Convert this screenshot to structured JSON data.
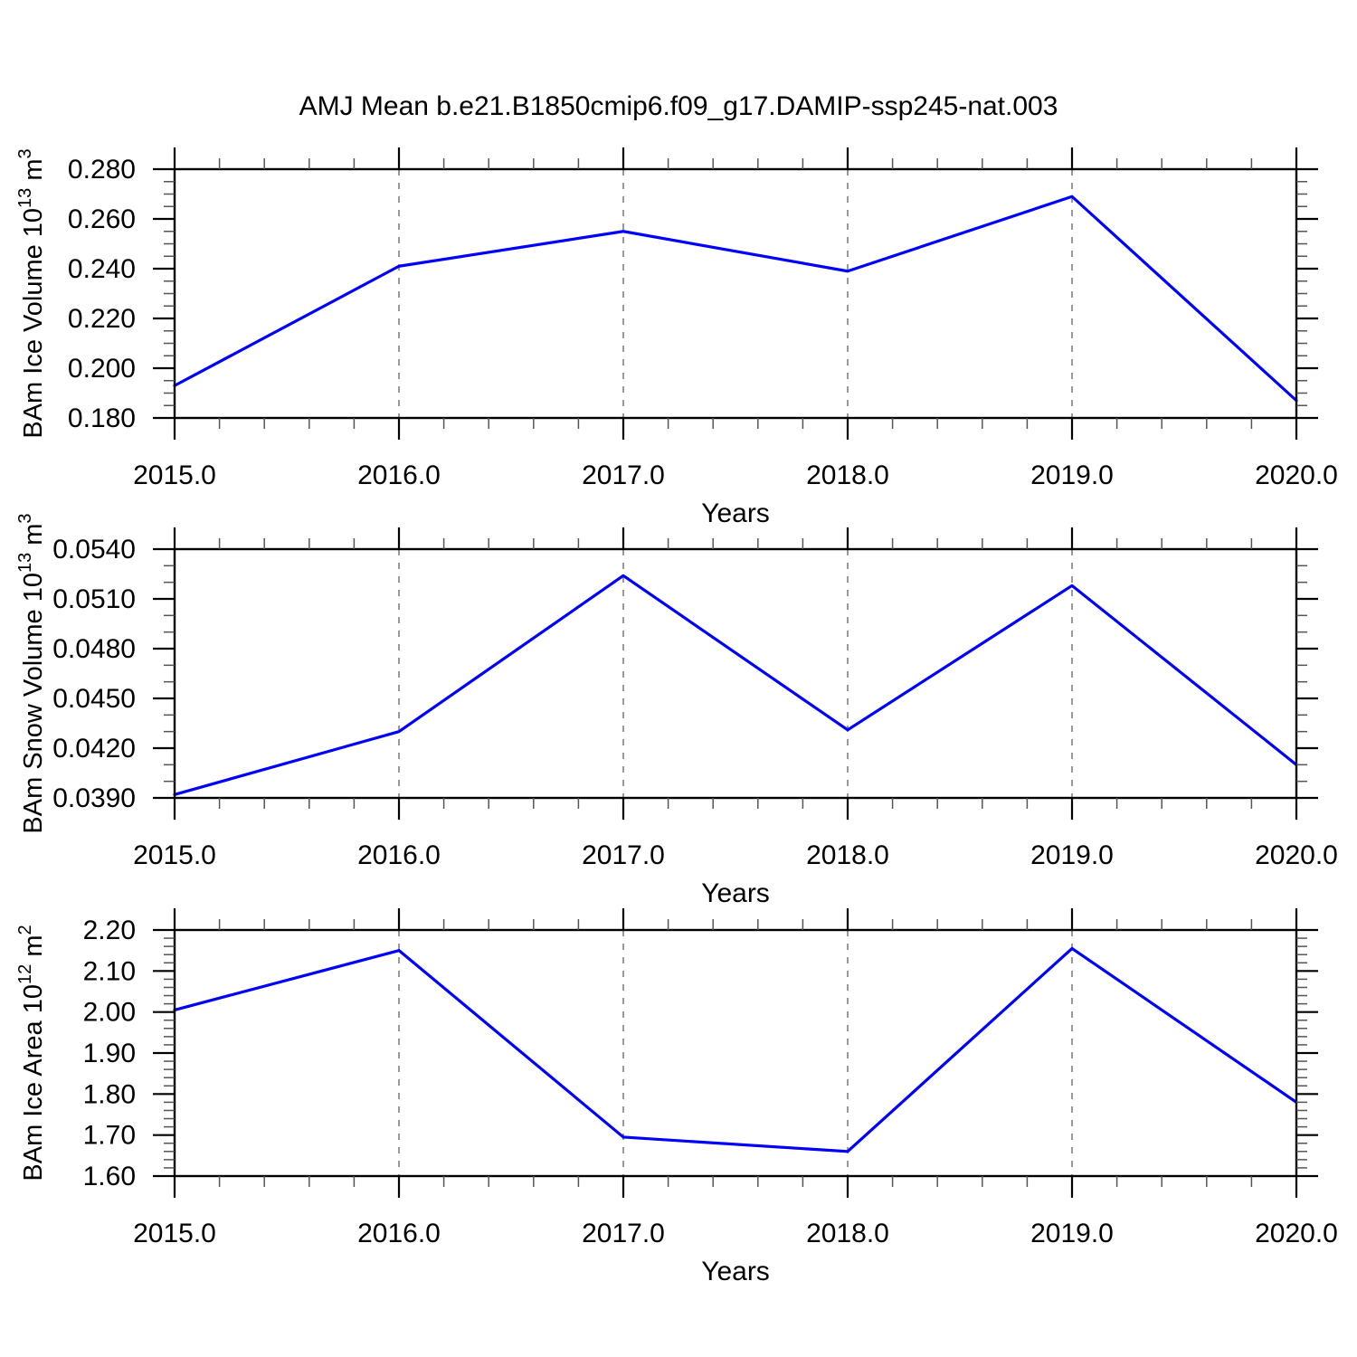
{
  "title": "AMJ Mean b.e21.B1850cmip6.f09_g17.DAMIP-ssp245-nat.003",
  "colors": {
    "line": "#0000ff",
    "grid": "#808080",
    "axis": "#000000",
    "minor_tick": "#555555"
  },
  "chart_data": [
    {
      "type": "line",
      "name": "bam-ice-volume",
      "ylabel": {
        "prefix": "BAm Ice Volume 10",
        "exp": "13",
        "unit": " m",
        "unit_exp": "3"
      },
      "xlabel": "Years",
      "x": [
        2015,
        2016,
        2017,
        2018,
        2019,
        2020
      ],
      "values": [
        0.193,
        0.241,
        0.255,
        0.239,
        0.269,
        0.187
      ],
      "xlim": [
        2015,
        2020
      ],
      "ylim": [
        0.18,
        0.28
      ],
      "xticks": [
        2015,
        2016,
        2017,
        2018,
        2019,
        2020
      ],
      "xtick_labels": [
        "2015.0",
        "2016.0",
        "2017.0",
        "2018.0",
        "2019.0",
        "2020.0"
      ],
      "x_minor_step": 0.2,
      "yticks": [
        0.18,
        0.2,
        0.22,
        0.24,
        0.26,
        0.28
      ],
      "ytick_labels": [
        "0.180",
        "0.200",
        "0.220",
        "0.240",
        "0.260",
        "0.280"
      ],
      "y_minor_step": 0.005,
      "grid": "vertical-dashed-at-interior-major-xticks",
      "legend": "none"
    },
    {
      "type": "line",
      "name": "bam-snow-volume",
      "ylabel": {
        "prefix": "BAm Snow Volume 10",
        "exp": "13",
        "unit": " m",
        "unit_exp": "3"
      },
      "xlabel": "Years",
      "x": [
        2015,
        2016,
        2017,
        2018,
        2019,
        2020
      ],
      "values": [
        0.0392,
        0.043,
        0.0524,
        0.0431,
        0.0518,
        0.041
      ],
      "xlim": [
        2015,
        2020
      ],
      "ylim": [
        0.039,
        0.054
      ],
      "xticks": [
        2015,
        2016,
        2017,
        2018,
        2019,
        2020
      ],
      "xtick_labels": [
        "2015.0",
        "2016.0",
        "2017.0",
        "2018.0",
        "2019.0",
        "2020.0"
      ],
      "x_minor_step": 0.2,
      "yticks": [
        0.039,
        0.042,
        0.045,
        0.048,
        0.051,
        0.054
      ],
      "ytick_labels": [
        "0.0390",
        "0.0420",
        "0.0450",
        "0.0480",
        "0.0510",
        "0.0540"
      ],
      "y_minor_step": 0.001,
      "grid": "vertical-dashed-at-interior-major-xticks",
      "legend": "none"
    },
    {
      "type": "line",
      "name": "bam-ice-area",
      "ylabel": {
        "prefix": "BAm Ice Area 10",
        "exp": "12",
        "unit": " m",
        "unit_exp": "2"
      },
      "xlabel": "Years",
      "x": [
        2015,
        2016,
        2017,
        2018,
        2019,
        2020
      ],
      "values": [
        2.005,
        2.15,
        1.695,
        1.66,
        2.155,
        1.78
      ],
      "xlim": [
        2015,
        2020
      ],
      "ylim": [
        1.6,
        2.2
      ],
      "xticks": [
        2015,
        2016,
        2017,
        2018,
        2019,
        2020
      ],
      "xtick_labels": [
        "2015.0",
        "2016.0",
        "2017.0",
        "2018.0",
        "2019.0",
        "2020.0"
      ],
      "x_minor_step": 0.2,
      "yticks": [
        1.6,
        1.7,
        1.8,
        1.9,
        2.0,
        2.1,
        2.2
      ],
      "ytick_labels": [
        "1.60",
        "1.70",
        "1.80",
        "1.90",
        "2.00",
        "2.10",
        "2.20"
      ],
      "y_minor_step": 0.02,
      "grid": "vertical-dashed-at-interior-major-xticks",
      "legend": "none"
    }
  ]
}
